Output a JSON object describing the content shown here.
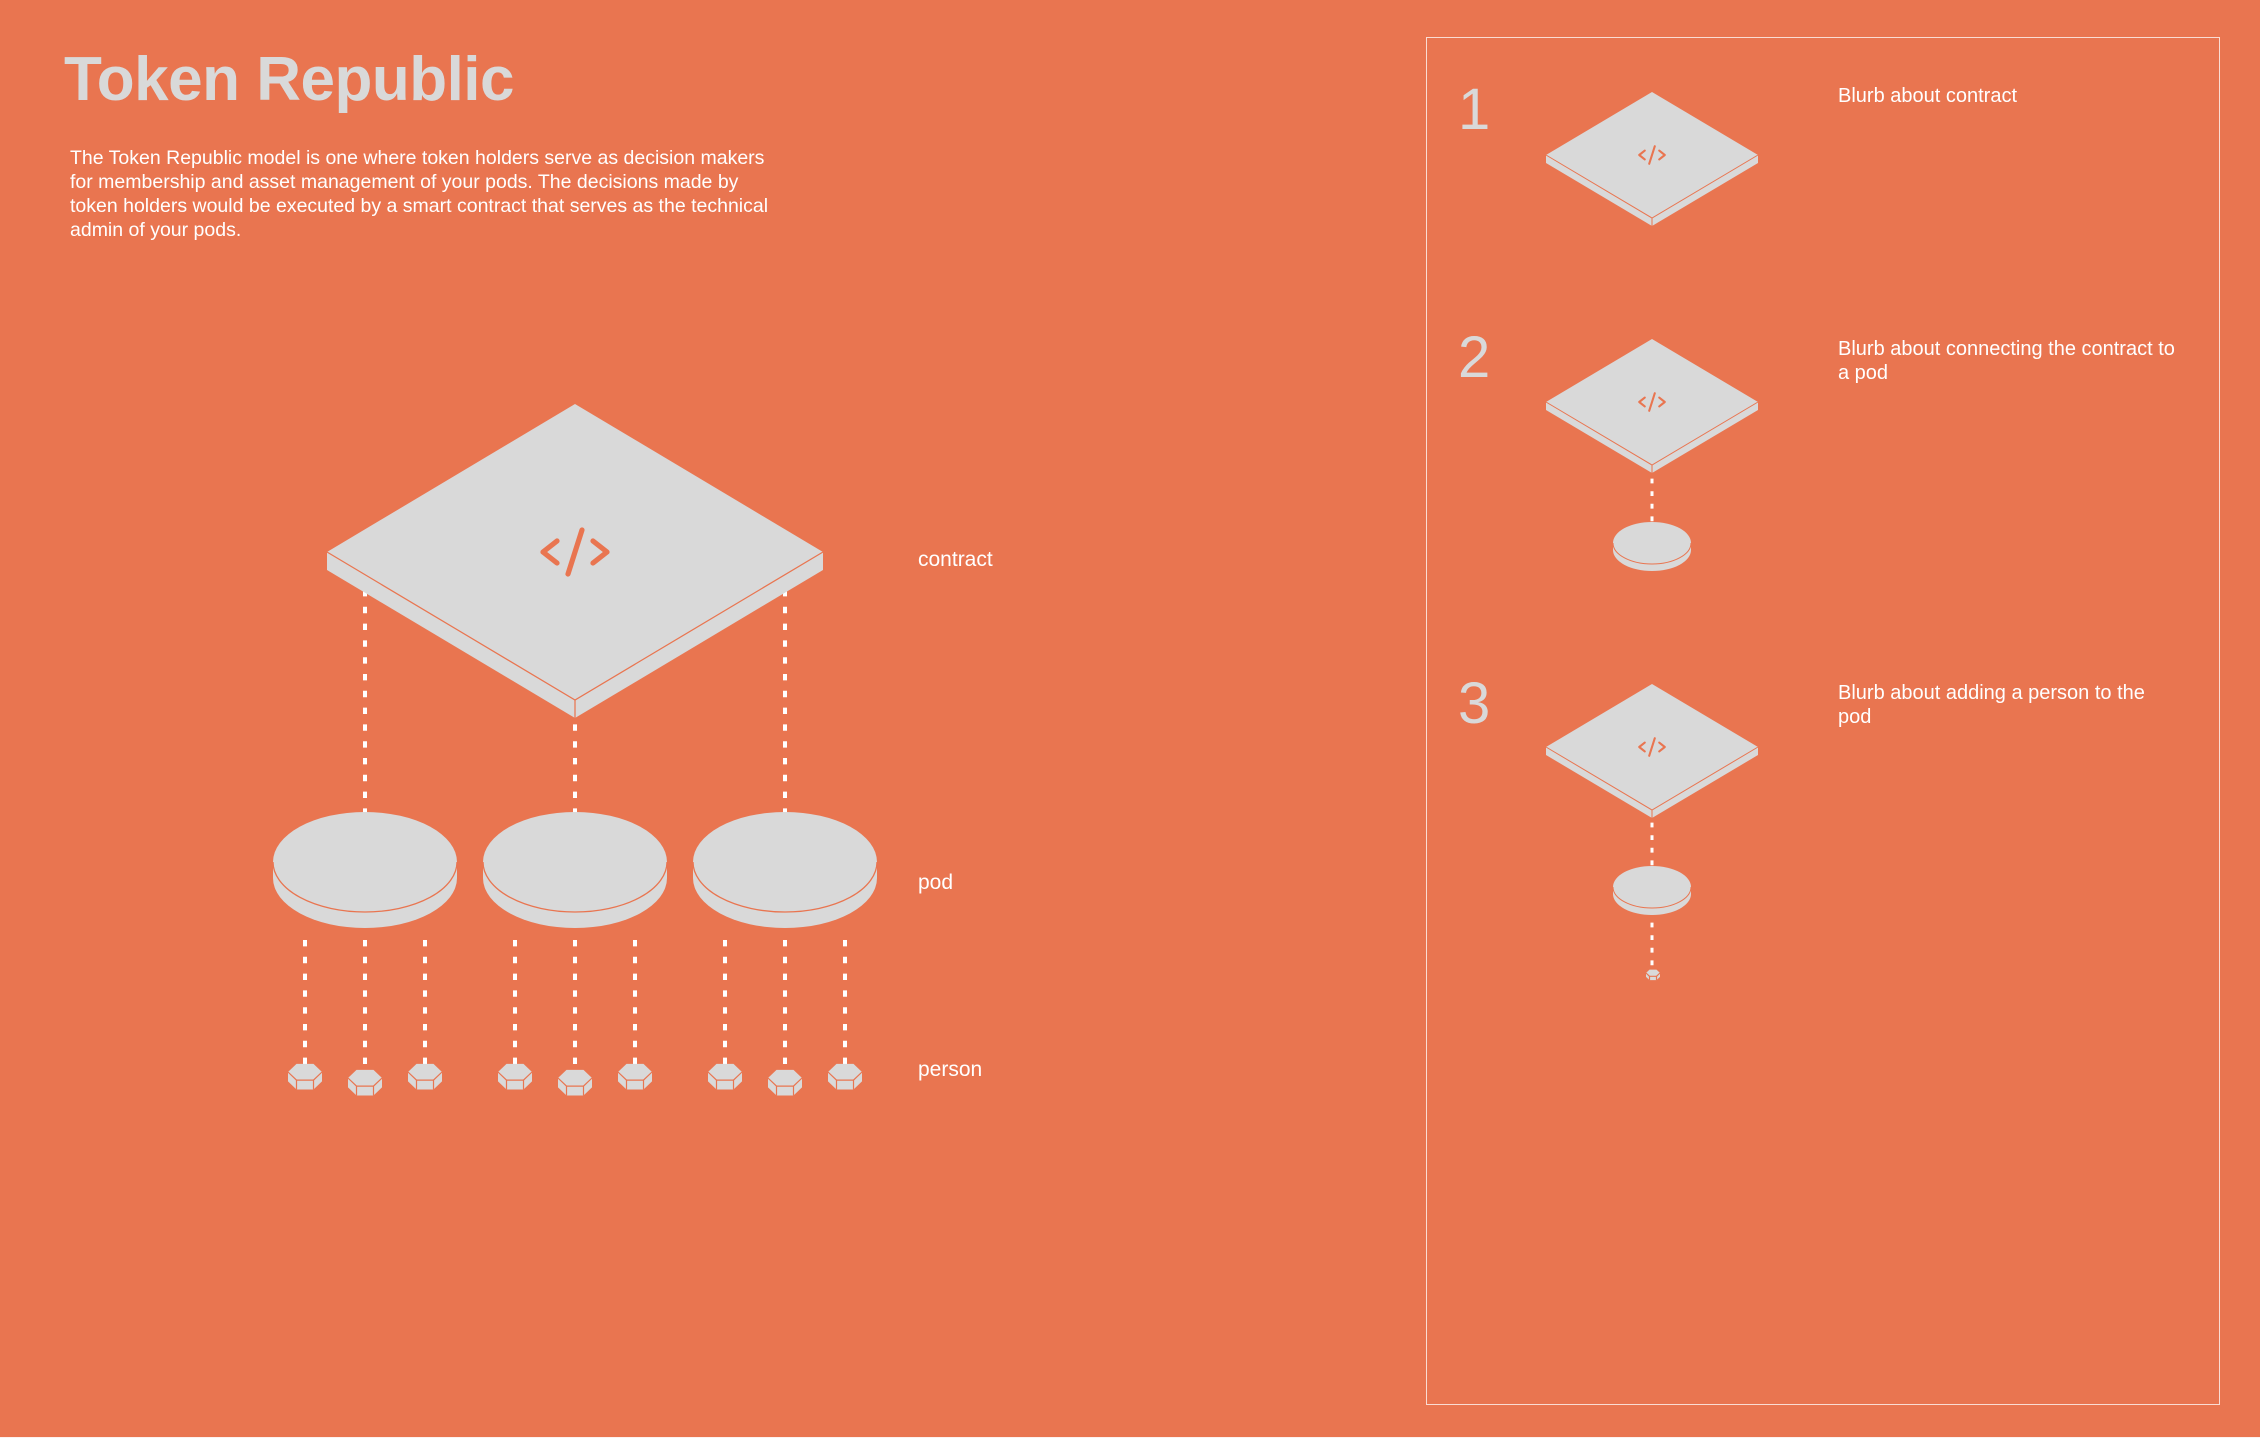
{
  "colors": {
    "background": "#E97550",
    "shape_fill": "#D9D9D9",
    "accent_line": "#E97550",
    "text_light": "#FFFFFF",
    "title_text": "#D9D9D9"
  },
  "header": {
    "title": "Token Republic",
    "description": "The Token Republic model is one where token holders serve as decision makers for membership and asset management of your pods. The decisions made by token holders would be executed by a smart contract that serves as the technical admin of your pods."
  },
  "diagram": {
    "labels": {
      "contract": "contract",
      "pod": "pod",
      "person": "person"
    },
    "contract_icon": "code-icon",
    "pod_count": 3,
    "persons_per_pod": 3
  },
  "steps": [
    {
      "number": "1",
      "blurb": "Blurb about contract"
    },
    {
      "number": "2",
      "blurb": "Blurb about connecting the contract to a pod"
    },
    {
      "number": "3",
      "blurb": "Blurb about adding a person to the pod"
    }
  ]
}
